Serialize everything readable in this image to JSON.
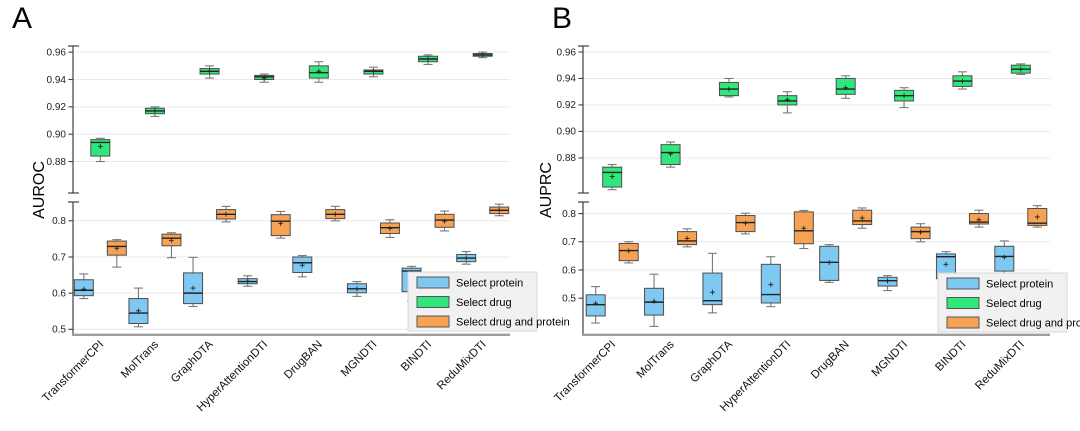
{
  "figure": {
    "background": "#ffffff",
    "colors": {
      "protein_blue": "#7EC8F2",
      "drug_green": "#31E77C",
      "drug_protein_orange": "#F7A155",
      "box_edge": "#4d4d4d",
      "whisker": "#7a7a7a",
      "median": "#222222",
      "grid": "#e9e9e9",
      "spine": "#3f3f3f",
      "x_axis_line": "#9e9e9e",
      "legend_bg": "#f1f1f1",
      "legend_border": "#d8d8d8"
    }
  },
  "chart_data": [
    {
      "type": "boxplot",
      "panel_letter": "A",
      "ylabel": "AUROC",
      "grid": true,
      "legend_position": "lower right",
      "categories": [
        "TransformerCPI",
        "MolTrans",
        "GraphDTA",
        "HyperAttentionDTI",
        "DrugBAN",
        "MGNDTI",
        "BINDTI",
        "ReduMixDTI"
      ],
      "axes": {
        "upper": {
          "range": [
            0.857,
            0.9645
          ],
          "ticks": [
            {
              "v": 0.96,
              "label": "0.96"
            },
            {
              "v": 0.94,
              "label": "0.94"
            },
            {
              "v": 0.92,
              "label": "0.92"
            },
            {
              "v": 0.9,
              "label": "0.90"
            },
            {
              "v": 0.88,
              "label": "0.88"
            }
          ]
        },
        "lower": {
          "range": [
            0.487,
            0.852
          ],
          "ticks": [
            {
              "v": 0.8,
              "label": "0.8"
            },
            {
              "v": 0.7,
              "label": "0.7"
            },
            {
              "v": 0.6,
              "label": "0.6"
            },
            {
              "v": 0.5,
              "label": "0.5"
            }
          ]
        }
      },
      "series": [
        {
          "name": "Select protein",
          "key": "protein",
          "color": "#7EC8F2",
          "boxes": [
            {
              "low": 0.585,
              "q1": 0.593,
              "med": 0.608,
              "q3": 0.637,
              "high": 0.653,
              "mean": 0.611
            },
            {
              "low": 0.507,
              "q1": 0.516,
              "med": 0.545,
              "q3": 0.585,
              "high": 0.614,
              "mean": 0.551
            },
            {
              "low": 0.563,
              "q1": 0.571,
              "med": 0.6,
              "q3": 0.656,
              "high": 0.699,
              "mean": 0.614
            },
            {
              "low": 0.619,
              "q1": 0.626,
              "med": 0.632,
              "q3": 0.64,
              "high": 0.648,
              "mean": 0.633
            },
            {
              "low": 0.645,
              "q1": 0.657,
              "med": 0.684,
              "q3": 0.7,
              "high": 0.704,
              "mean": 0.677
            },
            {
              "low": 0.591,
              "q1": 0.601,
              "med": 0.612,
              "q3": 0.626,
              "high": 0.632,
              "mean": 0.612
            },
            {
              "low": 0.578,
              "q1": 0.604,
              "med": 0.661,
              "q3": 0.669,
              "high": 0.674,
              "mean": 0.644
            },
            {
              "low": 0.68,
              "q1": 0.687,
              "med": 0.697,
              "q3": 0.707,
              "high": 0.715,
              "mean": 0.697
            }
          ]
        },
        {
          "name": "Select drug",
          "key": "drug",
          "color": "#31E77C",
          "boxes": [
            {
              "low": 0.88,
              "q1": 0.884,
              "med": 0.894,
              "q3": 0.896,
              "high": 0.897,
              "mean": 0.891
            },
            {
              "low": 0.913,
              "q1": 0.915,
              "med": 0.917,
              "q3": 0.919,
              "high": 0.92,
              "mean": 0.917
            },
            {
              "low": 0.941,
              "q1": 0.944,
              "med": 0.946,
              "q3": 0.948,
              "high": 0.95,
              "mean": 0.946
            },
            {
              "low": 0.938,
              "q1": 0.94,
              "med": 0.942,
              "q3": 0.943,
              "high": 0.944,
              "mean": 0.941
            },
            {
              "low": 0.938,
              "q1": 0.941,
              "med": 0.945,
              "q3": 0.95,
              "high": 0.953,
              "mean": 0.946
            },
            {
              "low": 0.942,
              "q1": 0.944,
              "med": 0.946,
              "q3": 0.947,
              "high": 0.949,
              "mean": 0.946
            },
            {
              "low": 0.951,
              "q1": 0.953,
              "med": 0.955,
              "q3": 0.957,
              "high": 0.958,
              "mean": 0.955
            },
            {
              "low": 0.956,
              "q1": 0.957,
              "med": 0.958,
              "q3": 0.959,
              "high": 0.96,
              "mean": 0.958
            }
          ]
        },
        {
          "name": "Select drug and protein",
          "key": "drug-protein",
          "color": "#F7A155",
          "boxes": [
            {
              "low": 0.672,
              "q1": 0.705,
              "med": 0.729,
              "q3": 0.744,
              "high": 0.748,
              "mean": 0.724
            },
            {
              "low": 0.698,
              "q1": 0.731,
              "med": 0.752,
              "q3": 0.763,
              "high": 0.767,
              "mean": 0.746
            },
            {
              "low": 0.797,
              "q1": 0.805,
              "med": 0.818,
              "q3": 0.831,
              "high": 0.84,
              "mean": 0.818
            },
            {
              "low": 0.752,
              "q1": 0.759,
              "med": 0.799,
              "q3": 0.817,
              "high": 0.826,
              "mean": 0.793
            },
            {
              "low": 0.8,
              "q1": 0.806,
              "med": 0.818,
              "q3": 0.831,
              "high": 0.84,
              "mean": 0.818
            },
            {
              "low": 0.754,
              "q1": 0.765,
              "med": 0.781,
              "q3": 0.794,
              "high": 0.803,
              "mean": 0.779
            },
            {
              "low": 0.772,
              "q1": 0.782,
              "med": 0.802,
              "q3": 0.818,
              "high": 0.827,
              "mean": 0.799
            },
            {
              "low": 0.814,
              "q1": 0.82,
              "med": 0.829,
              "q3": 0.838,
              "high": 0.846,
              "mean": 0.829
            }
          ]
        }
      ]
    },
    {
      "type": "boxplot",
      "panel_letter": "B",
      "ylabel": "AUPRC",
      "grid": true,
      "legend_position": "lower right",
      "categories": [
        "TransformerCPI",
        "MolTrans",
        "GraphDTA",
        "HyperAttentionDTI",
        "DrugBAN",
        "MGNDTI",
        "BINDTI",
        "ReduMixDTI"
      ],
      "axes": {
        "upper": {
          "range": [
            0.8535,
            0.9645
          ],
          "ticks": [
            {
              "v": 0.96,
              "label": "0.96"
            },
            {
              "v": 0.94,
              "label": "0.94"
            },
            {
              "v": 0.92,
              "label": "0.92"
            },
            {
              "v": 0.9,
              "label": "0.90"
            },
            {
              "v": 0.88,
              "label": "0.88"
            }
          ]
        },
        "lower": {
          "range": [
            0.373,
            0.841
          ],
          "ticks": [
            {
              "v": 0.8,
              "label": "0.8"
            },
            {
              "v": 0.7,
              "label": "0.7"
            },
            {
              "v": 0.6,
              "label": "0.6"
            },
            {
              "v": 0.5,
              "label": "0.5"
            }
          ]
        }
      },
      "series": [
        {
          "name": "Select protein",
          "key": "protein",
          "color": "#7EC8F2",
          "boxes": [
            {
              "low": 0.412,
              "q1": 0.437,
              "med": 0.477,
              "q3": 0.512,
              "high": 0.541,
              "mean": 0.482
            },
            {
              "low": 0.4,
              "q1": 0.44,
              "med": 0.486,
              "q3": 0.535,
              "high": 0.585,
              "mean": 0.489
            },
            {
              "low": 0.448,
              "q1": 0.477,
              "med": 0.491,
              "q3": 0.589,
              "high": 0.659,
              "mean": 0.521
            },
            {
              "low": 0.47,
              "q1": 0.483,
              "med": 0.513,
              "q3": 0.62,
              "high": 0.647,
              "mean": 0.548
            },
            {
              "low": 0.556,
              "q1": 0.563,
              "med": 0.627,
              "q3": 0.684,
              "high": 0.69,
              "mean": 0.626
            },
            {
              "low": 0.527,
              "q1": 0.543,
              "med": 0.562,
              "q3": 0.574,
              "high": 0.58,
              "mean": 0.561
            },
            {
              "low": 0.545,
              "q1": 0.569,
              "med": 0.647,
              "q3": 0.657,
              "high": 0.665,
              "mean": 0.62
            },
            {
              "low": 0.585,
              "q1": 0.596,
              "med": 0.648,
              "q3": 0.684,
              "high": 0.703,
              "mean": 0.645
            }
          ]
        },
        {
          "name": "Select drug",
          "key": "drug",
          "color": "#31E77C",
          "boxes": [
            {
              "low": 0.856,
              "q1": 0.858,
              "med": 0.869,
              "q3": 0.873,
              "high": 0.875,
              "mean": 0.866
            },
            {
              "low": 0.873,
              "q1": 0.875,
              "med": 0.884,
              "q3": 0.89,
              "high": 0.892,
              "mean": 0.883
            },
            {
              "low": 0.926,
              "q1": 0.927,
              "med": 0.932,
              "q3": 0.937,
              "high": 0.94,
              "mean": 0.932
            },
            {
              "low": 0.914,
              "q1": 0.92,
              "med": 0.923,
              "q3": 0.927,
              "high": 0.93,
              "mean": 0.924
            },
            {
              "low": 0.925,
              "q1": 0.928,
              "med": 0.932,
              "q3": 0.94,
              "high": 0.942,
              "mean": 0.933
            },
            {
              "low": 0.918,
              "q1": 0.923,
              "med": 0.927,
              "q3": 0.931,
              "high": 0.933,
              "mean": 0.927
            },
            {
              "low": 0.932,
              "q1": 0.934,
              "med": 0.938,
              "q3": 0.942,
              "high": 0.945,
              "mean": 0.938
            },
            {
              "low": 0.943,
              "q1": 0.944,
              "med": 0.947,
              "q3": 0.95,
              "high": 0.951,
              "mean": 0.947
            }
          ]
        },
        {
          "name": "Select drug and protein",
          "key": "drug-protein",
          "color": "#F7A155",
          "boxes": [
            {
              "low": 0.625,
              "q1": 0.633,
              "med": 0.669,
              "q3": 0.694,
              "high": 0.7,
              "mean": 0.668
            },
            {
              "low": 0.682,
              "q1": 0.69,
              "med": 0.703,
              "q3": 0.736,
              "high": 0.746,
              "mean": 0.712
            },
            {
              "low": 0.728,
              "q1": 0.736,
              "med": 0.768,
              "q3": 0.793,
              "high": 0.801,
              "mean": 0.766
            },
            {
              "low": 0.676,
              "q1": 0.693,
              "med": 0.739,
              "q3": 0.806,
              "high": 0.811,
              "mean": 0.748
            },
            {
              "low": 0.748,
              "q1": 0.761,
              "med": 0.774,
              "q3": 0.812,
              "high": 0.82,
              "mean": 0.784
            },
            {
              "low": 0.7,
              "q1": 0.711,
              "med": 0.736,
              "q3": 0.752,
              "high": 0.764,
              "mean": 0.734
            },
            {
              "low": 0.752,
              "q1": 0.763,
              "med": 0.77,
              "q3": 0.8,
              "high": 0.812,
              "mean": 0.778
            },
            {
              "low": 0.752,
              "q1": 0.758,
              "med": 0.766,
              "q3": 0.818,
              "high": 0.828,
              "mean": 0.788
            }
          ]
        }
      ]
    }
  ]
}
